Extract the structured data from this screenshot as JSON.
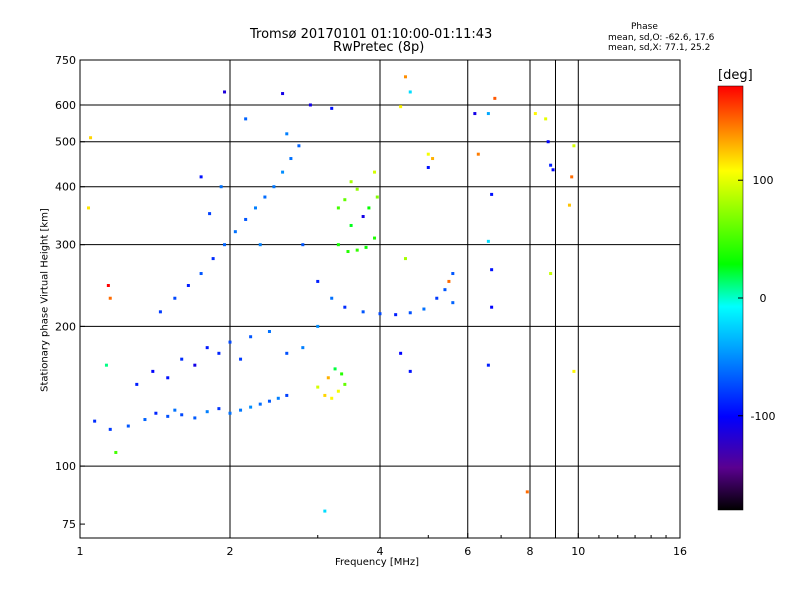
{
  "title": {
    "line1": "Tromsø 20170101 01:10:00-01:11:43",
    "line2": "RwPretec (8p)"
  },
  "phase_stats": {
    "heading": "Phase",
    "o_line": "mean, sd,O: -62.6, 17.6",
    "x_line": "mean, sd,X:  77.1, 25.2"
  },
  "colorbar": {
    "unit": "[deg]",
    "range": [
      -180,
      180
    ],
    "ticks": [
      {
        "value": 100,
        "label": "100"
      },
      {
        "value": 0,
        "label": "0"
      },
      {
        "value": -100,
        "label": "-100"
      }
    ]
  },
  "chart_data": {
    "type": "scatter",
    "xlabel": "Frequency [MHz]",
    "ylabel": "Stationary phase Virtual Height [km]",
    "xscale": "log",
    "yscale": "log",
    "xlim": [
      1,
      16
    ],
    "ylim": [
      70,
      750
    ],
    "xticks": [
      {
        "value": 1,
        "label": "1"
      },
      {
        "value": 2,
        "label": "2"
      },
      {
        "value": 4,
        "label": "4"
      },
      {
        "value": 6,
        "label": "6"
      },
      {
        "value": 8,
        "label": "8"
      },
      {
        "value": 10,
        "label": "10"
      },
      {
        "value": 16,
        "label": "16"
      }
    ],
    "xgrid": [
      2,
      4,
      6,
      8,
      9,
      10
    ],
    "yticks": [
      {
        "value": 75,
        "label": "75"
      },
      {
        "value": 100,
        "label": "100"
      },
      {
        "value": 200,
        "label": "200"
      },
      {
        "value": 300,
        "label": "300"
      },
      {
        "value": 400,
        "label": "400"
      },
      {
        "value": 500,
        "label": "500"
      },
      {
        "value": 600,
        "label": "600"
      },
      {
        "value": 750,
        "label": "750"
      }
    ],
    "ygrid": [
      100,
      200,
      300,
      400,
      500,
      600
    ],
    "grid": true,
    "series": [
      {
        "color_by": "phase_deg",
        "points": [
          [
            1.07,
            125,
            -85
          ],
          [
            1.15,
            120,
            -80
          ],
          [
            1.25,
            122,
            -70
          ],
          [
            1.35,
            126,
            -65
          ],
          [
            1.42,
            130,
            -88
          ],
          [
            1.5,
            128,
            -72
          ],
          [
            1.55,
            132,
            -60
          ],
          [
            1.6,
            129,
            -75
          ],
          [
            1.7,
            127,
            -68
          ],
          [
            1.8,
            131,
            -55
          ],
          [
            1.9,
            133,
            -82
          ],
          [
            2.0,
            130,
            -60
          ],
          [
            2.1,
            132,
            -58
          ],
          [
            2.2,
            134,
            -50
          ],
          [
            2.3,
            136,
            -62
          ],
          [
            2.4,
            138,
            -70
          ],
          [
            2.5,
            140,
            -55
          ],
          [
            2.6,
            142,
            -78
          ],
          [
            1.3,
            150,
            -90
          ],
          [
            1.4,
            160,
            -100
          ],
          [
            1.5,
            155,
            -95
          ],
          [
            1.6,
            170,
            -85
          ],
          [
            1.7,
            165,
            -110
          ],
          [
            1.8,
            180,
            -92
          ],
          [
            1.9,
            175,
            -88
          ],
          [
            2.0,
            185,
            -75
          ],
          [
            2.1,
            170,
            -80
          ],
          [
            2.2,
            190,
            -70
          ],
          [
            2.4,
            195,
            -60
          ],
          [
            2.6,
            175,
            -72
          ],
          [
            2.8,
            180,
            -55
          ],
          [
            3.0,
            200,
            -50
          ],
          [
            1.45,
            215,
            -80
          ],
          [
            1.55,
            230,
            -75
          ],
          [
            1.65,
            245,
            -90
          ],
          [
            1.75,
            260,
            -70
          ],
          [
            1.85,
            280,
            -85
          ],
          [
            1.95,
            300,
            -65
          ],
          [
            2.05,
            320,
            -60
          ],
          [
            2.15,
            340,
            -70
          ],
          [
            2.25,
            360,
            -55
          ],
          [
            2.35,
            380,
            -62
          ],
          [
            2.45,
            400,
            -58
          ],
          [
            2.55,
            430,
            -50
          ],
          [
            2.65,
            460,
            -60
          ],
          [
            2.75,
            490,
            -65
          ],
          [
            2.6,
            520,
            -55
          ],
          [
            1.75,
            420,
            -95
          ],
          [
            1.82,
            350,
            -78
          ],
          [
            1.92,
            400,
            -60
          ],
          [
            2.15,
            560,
            -65
          ],
          [
            1.95,
            640,
            -115
          ],
          [
            2.55,
            635,
            -110
          ],
          [
            2.3,
            300,
            -55
          ],
          [
            2.8,
            300,
            -70
          ],
          [
            3.0,
            250,
            -90
          ],
          [
            3.2,
            230,
            -60
          ],
          [
            3.4,
            220,
            -85
          ],
          [
            3.7,
            215,
            -70
          ],
          [
            4.0,
            213,
            -75
          ],
          [
            4.3,
            212,
            -90
          ],
          [
            4.6,
            214,
            -72
          ],
          [
            4.9,
            218,
            -60
          ],
          [
            5.2,
            230,
            -80
          ],
          [
            5.4,
            240,
            -70
          ],
          [
            5.6,
            225,
            -65
          ],
          [
            3.3,
            300,
            35
          ],
          [
            3.45,
            290,
            40
          ],
          [
            3.6,
            292,
            45
          ],
          [
            3.75,
            296,
            32
          ],
          [
            3.9,
            310,
            38
          ],
          [
            3.5,
            330,
            25
          ],
          [
            3.7,
            345,
            -110
          ],
          [
            3.8,
            360,
            30
          ],
          [
            3.95,
            380,
            70
          ],
          [
            3.6,
            395,
            75
          ],
          [
            3.4,
            375,
            60
          ],
          [
            3.3,
            360,
            50
          ],
          [
            3.9,
            430,
            95
          ],
          [
            3.5,
            410,
            80
          ],
          [
            3.0,
            148,
            95
          ],
          [
            3.1,
            142,
            120
          ],
          [
            3.2,
            140,
            110
          ],
          [
            3.3,
            145,
            105
          ],
          [
            3.4,
            150,
            60
          ],
          [
            3.35,
            158,
            40
          ],
          [
            3.15,
            155,
            130
          ],
          [
            3.25,
            162,
            20
          ],
          [
            4.4,
            595,
            110
          ],
          [
            4.5,
            690,
            140
          ],
          [
            4.6,
            640,
            -20
          ],
          [
            5.0,
            470,
            105
          ],
          [
            5.1,
            460,
            130
          ],
          [
            5.0,
            440,
            -95
          ],
          [
            4.5,
            280,
            80
          ],
          [
            4.4,
            175,
            -100
          ],
          [
            4.6,
            160,
            -95
          ],
          [
            5.5,
            250,
            150
          ],
          [
            5.6,
            260,
            -70
          ],
          [
            6.2,
            575,
            -110
          ],
          [
            6.3,
            470,
            145
          ],
          [
            6.8,
            620,
            155
          ],
          [
            6.6,
            575,
            -40
          ],
          [
            6.7,
            385,
            -95
          ],
          [
            6.6,
            305,
            -20
          ],
          [
            6.7,
            220,
            -100
          ],
          [
            6.7,
            265,
            -95
          ],
          [
            6.6,
            165,
            -90
          ],
          [
            7.9,
            88,
            150
          ],
          [
            8.2,
            575,
            110
          ],
          [
            8.6,
            560,
            100
          ],
          [
            8.7,
            500,
            -100
          ],
          [
            8.8,
            445,
            -90
          ],
          [
            8.9,
            435,
            -100
          ],
          [
            8.8,
            260,
            90
          ],
          [
            9.8,
            490,
            95
          ],
          [
            9.7,
            420,
            150
          ],
          [
            9.6,
            365,
            125
          ],
          [
            9.8,
            160,
            110
          ],
          [
            1.05,
            510,
            120
          ],
          [
            1.04,
            360,
            115
          ],
          [
            1.14,
            245,
            180
          ],
          [
            1.15,
            230,
            150
          ],
          [
            1.13,
            165,
            10
          ],
          [
            1.18,
            107,
            50
          ],
          [
            3.1,
            80,
            -20
          ],
          [
            2.9,
            600,
            -110
          ],
          [
            3.2,
            590,
            -95
          ]
        ]
      }
    ]
  }
}
